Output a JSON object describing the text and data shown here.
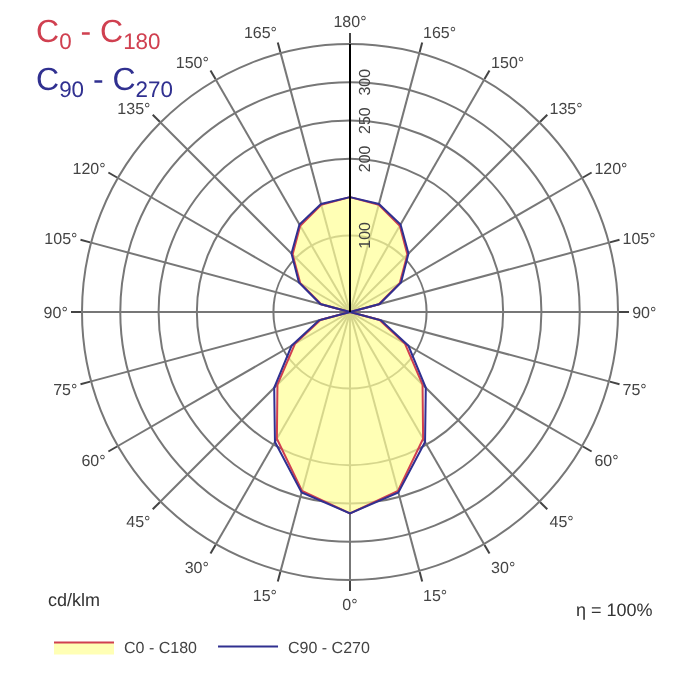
{
  "chart_data": {
    "type": "radar",
    "ylabel": "cd/klm",
    "annotations": [
      "C$_{0}$ - C$_{180}$",
      "C$_{90}$ - C$_{270}$",
      "η = 100%"
    ],
    "categories": [
      "180°",
      "165°",
      "150°",
      "135°",
      "120°",
      "105°",
      "90°",
      "75°",
      "60°",
      "45°",
      "30°",
      "15°",
      "0°",
      "15°",
      "30°",
      "45°",
      "60°",
      "75°",
      "90°",
      "105°",
      "120°",
      "135°",
      "150°",
      "165°"
    ],
    "series": [
      {
        "name": "C0 - C180",
        "color": "#d04050",
        "values": [
          150,
          145,
          130,
          106,
          75,
          39,
          0,
          40,
          83,
          134,
          191,
          242,
          263,
          242,
          191,
          134,
          83,
          40,
          0,
          39,
          75,
          106,
          130,
          145
        ]
      },
      {
        "name": "C90 - C270",
        "color": "#303090",
        "values": [
          150,
          146,
          132,
          108,
          77,
          40,
          0,
          42,
          88,
          140,
          196,
          244,
          263,
          244,
          196,
          140,
          88,
          42,
          0,
          40,
          77,
          108,
          132,
          146
        ]
      }
    ],
    "ylim": [
      0,
      350
    ],
    "yticks": [
      100,
      200,
      250,
      300
    ],
    "grid": true,
    "legend": "bottom left",
    "line_style": "solid",
    "marker": "none"
  }
}
